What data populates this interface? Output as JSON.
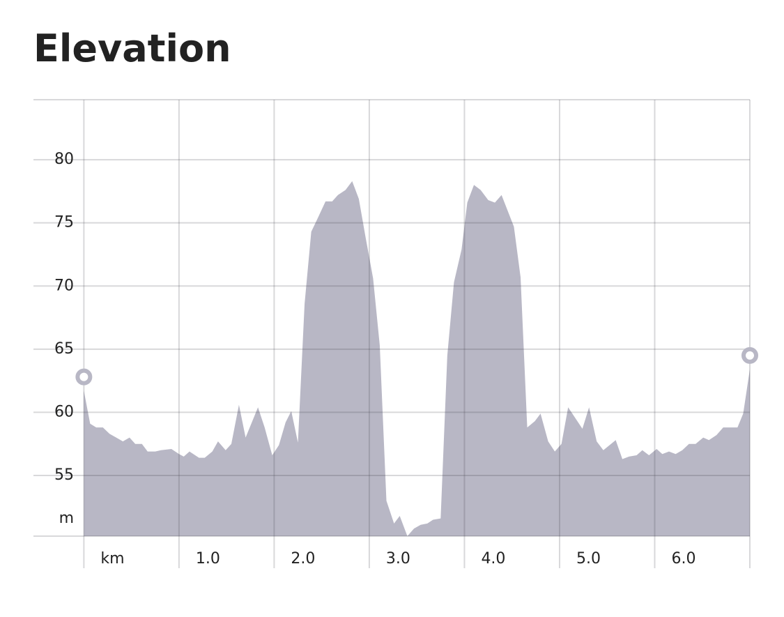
{
  "chart_data": {
    "type": "area",
    "title": "Elevation",
    "y_unit": "m",
    "x": [
      0,
      0.066,
      0.13,
      0.2,
      0.27,
      0.34,
      0.41,
      0.48,
      0.54,
      0.61,
      0.67,
      0.75,
      0.81,
      0.92,
      1.0,
      1.05,
      1.11,
      1.21,
      1.27,
      1.35,
      1.41,
      1.49,
      1.55,
      1.63,
      1.7,
      1.83,
      1.9,
      1.98,
      2.05,
      2.12,
      2.18,
      2.25,
      2.32,
      2.39,
      2.46,
      2.54,
      2.61,
      2.67,
      2.75,
      2.82,
      2.89,
      2.96,
      3.04,
      3.11,
      3.18,
      3.26,
      3.32,
      3.4,
      3.47,
      3.54,
      3.61,
      3.67,
      3.75,
      3.82,
      3.89,
      3.97,
      4.03,
      4.1,
      4.17,
      4.25,
      4.32,
      4.39,
      4.52,
      4.59,
      4.66,
      4.74,
      4.8,
      4.88,
      4.95,
      5.02,
      5.09,
      5.24,
      5.31,
      5.39,
      5.46,
      5.59,
      5.66,
      5.73,
      5.81,
      5.87,
      5.94,
      6.02,
      6.08,
      6.15,
      6.22,
      6.29,
      6.36,
      6.43,
      6.51,
      6.57,
      6.65,
      6.72,
      6.79,
      6.87,
      6.93,
      7.0
    ],
    "values": [
      61.7,
      59.1,
      58.8,
      58.8,
      58.3,
      58.0,
      57.7,
      58.0,
      57.5,
      57.5,
      56.9,
      56.9,
      57.0,
      57.1,
      56.7,
      56.5,
      56.9,
      56.4,
      56.4,
      56.9,
      57.7,
      57.0,
      57.5,
      60.6,
      58.0,
      60.4,
      58.8,
      56.6,
      57.4,
      59.2,
      60.1,
      57.6,
      68.6,
      74.3,
      75.4,
      76.7,
      76.7,
      77.2,
      77.6,
      78.3,
      76.9,
      73.9,
      70.6,
      65.3,
      53.0,
      51.2,
      51.8,
      50.2,
      50.8,
      51.1,
      51.2,
      51.5,
      51.6,
      64.5,
      70.3,
      72.9,
      76.6,
      78.0,
      77.6,
      76.8,
      76.6,
      77.2,
      74.7,
      70.7,
      58.8,
      59.3,
      59.9,
      57.7,
      56.9,
      57.5,
      60.4,
      58.7,
      60.4,
      57.7,
      57.0,
      57.8,
      56.3,
      56.5,
      56.6,
      57.0,
      56.6,
      57.1,
      56.7,
      56.9,
      56.7,
      57.0,
      57.5,
      57.5,
      58.0,
      57.8,
      58.2,
      58.8,
      58.8,
      58.8,
      59.9,
      63.4
    ],
    "color": "#b8b7c5",
    "xlim": [
      -0.53,
      7.0
    ],
    "ylim": [
      50.2,
      84.75
    ],
    "xticks": [
      {
        "value": 0,
        "label": "km"
      },
      {
        "value": 1,
        "label": "1.0"
      },
      {
        "value": 2,
        "label": "2.0"
      },
      {
        "value": 3,
        "label": "3.0"
      },
      {
        "value": 4,
        "label": "4.0"
      },
      {
        "value": 5,
        "label": "5.0"
      },
      {
        "value": 6,
        "label": "6.0"
      }
    ],
    "yticks": [
      55,
      60,
      65,
      70,
      75,
      80
    ],
    "grid": true
  }
}
